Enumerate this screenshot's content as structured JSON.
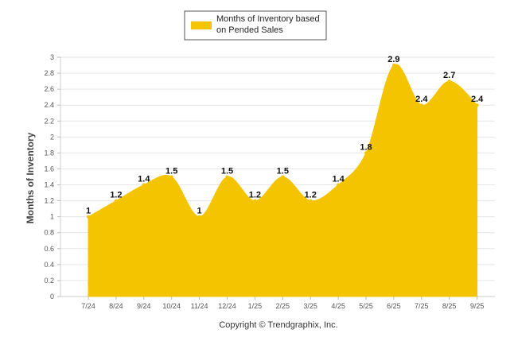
{
  "chart_data": {
    "type": "area",
    "title": "",
    "xlabel": "",
    "ylabel": "Months of Inventory",
    "ylim": [
      0,
      3
    ],
    "y_ticks": [
      "0",
      "0.2",
      "0.4",
      "0.6",
      "0.8",
      "1",
      "1.2",
      "1.4",
      "1.6",
      "1.8",
      "2",
      "2.2",
      "2.4",
      "2.6",
      "2.8",
      "3"
    ],
    "categories": [
      "7/24",
      "8/24",
      "9/24",
      "10/24",
      "11/24",
      "12/24",
      "1/25",
      "2/25",
      "3/25",
      "4/25",
      "5/25",
      "6/25",
      "7/25",
      "8/25",
      "9/25"
    ],
    "series": [
      {
        "name": "Months of Inventory based on Pended Sales",
        "values": [
          1,
          1.2,
          1.4,
          1.5,
          1,
          1.5,
          1.2,
          1.5,
          1.2,
          1.4,
          1.8,
          2.9,
          2.4,
          2.7,
          2.4
        ],
        "labels": [
          "1",
          "1.2",
          "1.4",
          "1.5",
          "1",
          "1.5",
          "1.2",
          "1.5",
          "1.2",
          "1.4",
          "1.8",
          "2.9",
          "2.4",
          "2.7",
          "2.4"
        ],
        "color": "#f5c400"
      }
    ],
    "legend": {
      "position": "top-center",
      "line1": "Months of Inventory based",
      "line2": "on Pended Sales"
    },
    "grid": true
  },
  "footer": {
    "copyright": "Copyright © Trendgraphix, Inc."
  }
}
